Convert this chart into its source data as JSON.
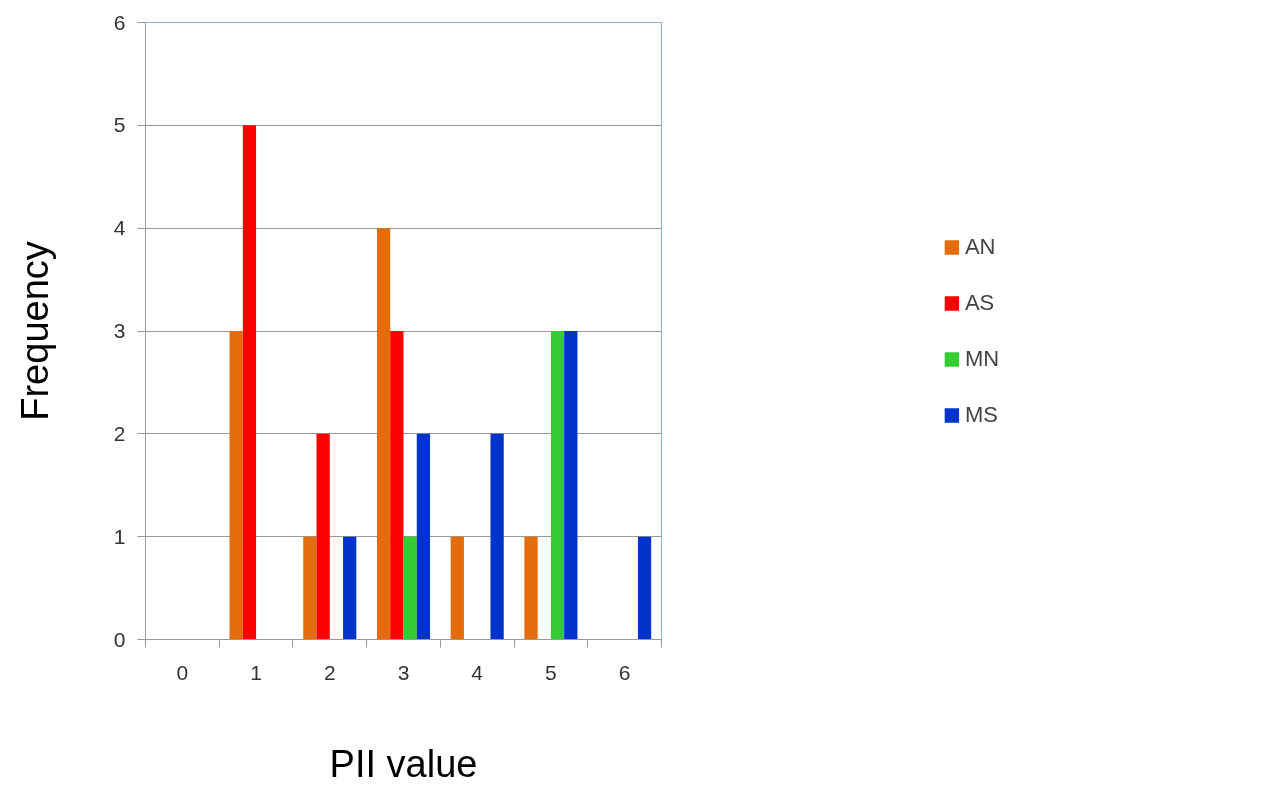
{
  "chart_data": {
    "type": "bar",
    "xlabel": "PII value",
    "ylabel": "Frequency",
    "categories": [
      "0",
      "1",
      "2",
      "3",
      "4",
      "5",
      "6"
    ],
    "series": [
      {
        "name": "AN",
        "color": "#e46c0a",
        "values": [
          0,
          3,
          1,
          4,
          1,
          1,
          0
        ]
      },
      {
        "name": "AS",
        "color": "#ff0000",
        "values": [
          0,
          5,
          2,
          3,
          0,
          0,
          0
        ]
      },
      {
        "name": "MN",
        "color": "#33cc33",
        "values": [
          0,
          0,
          0,
          1,
          0,
          3,
          0
        ]
      },
      {
        "name": "MS",
        "color": "#0033cc",
        "values": [
          0,
          0,
          1,
          2,
          2,
          3,
          1
        ]
      }
    ],
    "ylim": [
      0,
      6
    ],
    "yticks": [
      0,
      1,
      2,
      3,
      4,
      5,
      6
    ],
    "grid": "y",
    "legend": "right"
  }
}
